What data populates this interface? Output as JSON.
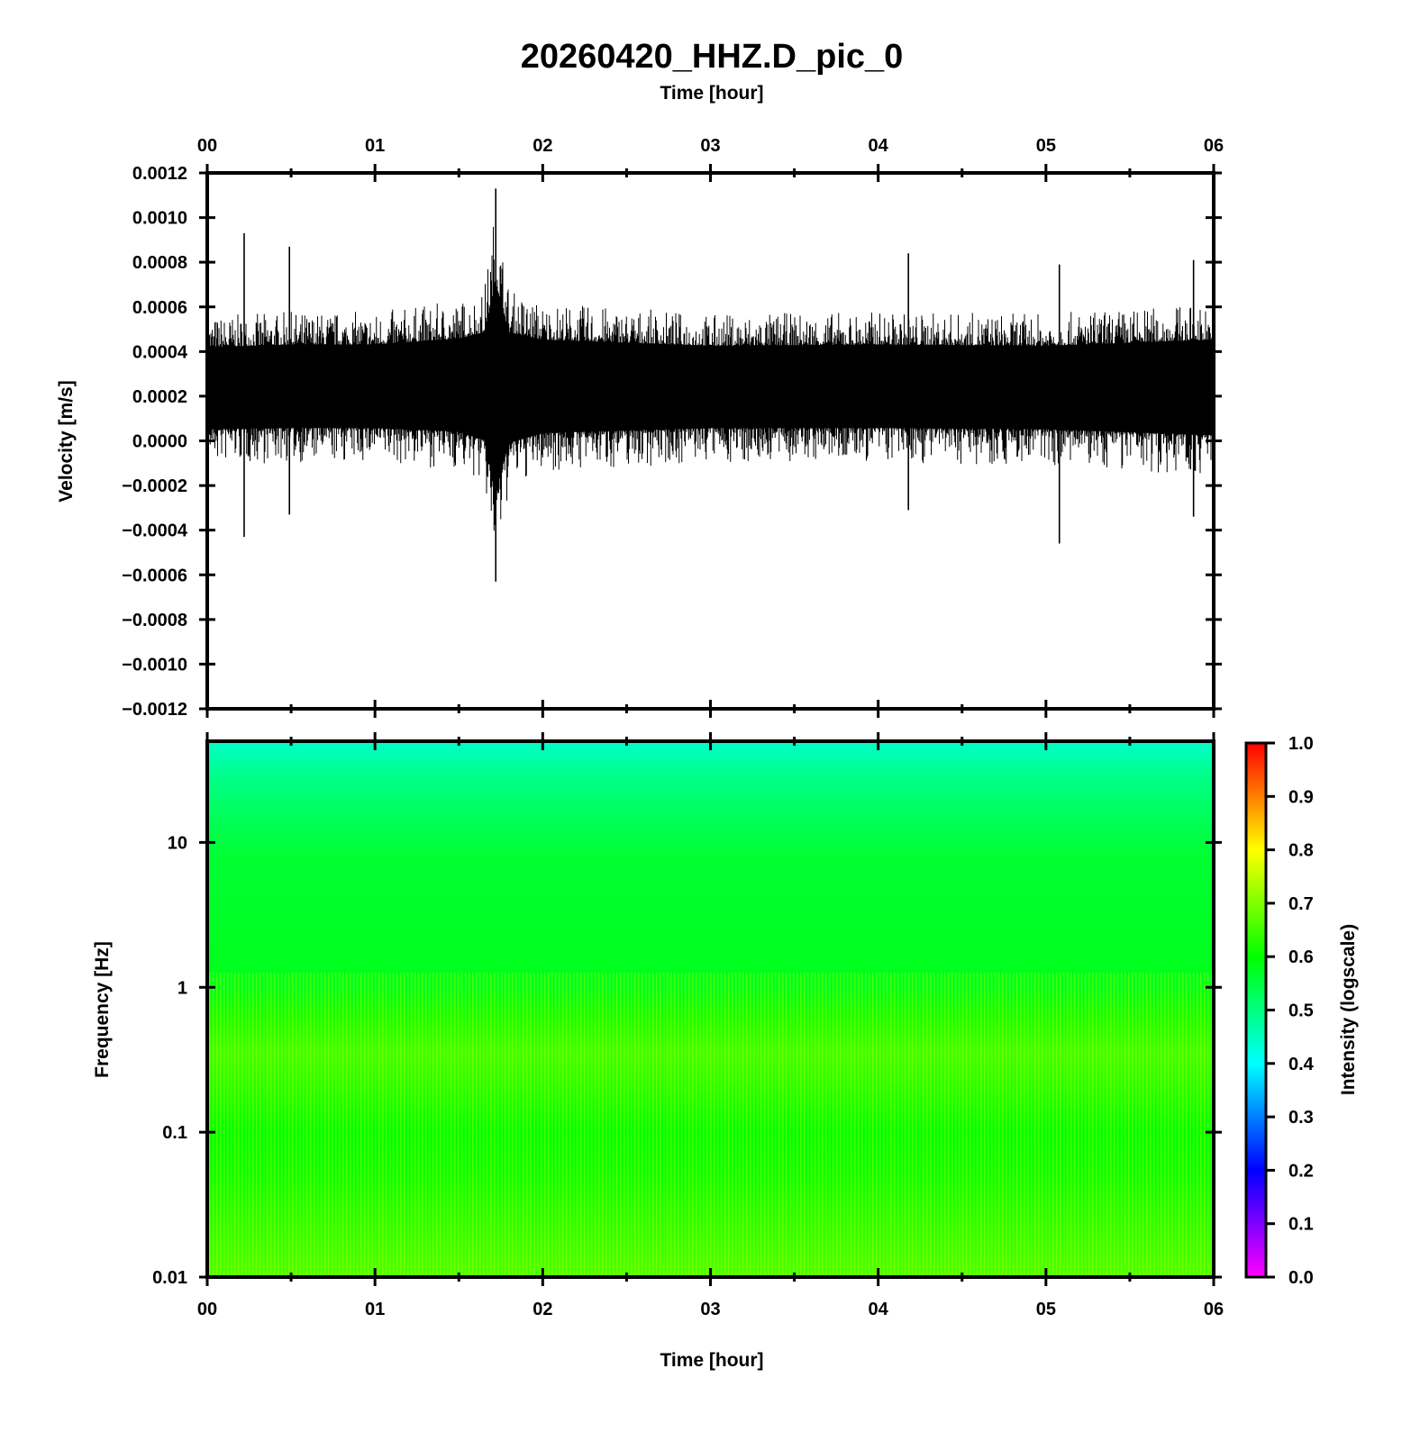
{
  "chart_data": [
    {
      "type": "line",
      "title": "20260420_HHZ.D_pic_0",
      "top_xlabel": "Time [hour]",
      "ylabel": "Velocity [m/s]",
      "xlim": [
        0,
        6
      ],
      "ylim": [
        -0.0012,
        0.0012
      ],
      "x_ticks": [
        "00",
        "01",
        "02",
        "03",
        "04",
        "05",
        "06"
      ],
      "y_ticks": [
        "0.0012",
        "0.0010",
        "0.0008",
        "0.0006",
        "0.0004",
        "0.0002",
        "0.0000",
        "−0.0002",
        "−0.0004",
        "−0.0006",
        "−0.0008",
        "−0.0010",
        "−0.0012"
      ],
      "y_tick_values": [
        0.0012,
        0.001,
        0.0008,
        0.0006,
        0.0004,
        0.0002,
        0,
        -0.0002,
        -0.0004,
        -0.0006,
        -0.0008,
        -0.001,
        -0.0012
      ],
      "series": [
        {
          "color": "#000000",
          "baseline": 0.00025,
          "envelope_upper": [
            [
              0,
              0.00056
            ],
            [
              0.5,
              0.00058
            ],
            [
              1.0,
              0.00058
            ],
            [
              1.5,
              0.00063
            ],
            [
              1.65,
              0.00068
            ],
            [
              1.72,
              0.00108
            ],
            [
              1.8,
              0.00068
            ],
            [
              2.0,
              0.00062
            ],
            [
              3.0,
              0.00057
            ],
            [
              4.0,
              0.00058
            ],
            [
              5.0,
              0.00057
            ],
            [
              6.0,
              0.00062
            ]
          ],
          "envelope_lower": [
            [
              0,
              -0.00011
            ],
            [
              0.5,
              -0.0001
            ],
            [
              1.0,
              -0.0001
            ],
            [
              1.5,
              -0.00013
            ],
            [
              1.65,
              -0.0002
            ],
            [
              1.72,
              -0.00062
            ],
            [
              1.8,
              -0.00022
            ],
            [
              2.0,
              -0.00014
            ],
            [
              3.0,
              -0.0001
            ],
            [
              4.0,
              -0.0001
            ],
            [
              5.0,
              -0.00011
            ],
            [
              6.0,
              -0.00016
            ]
          ],
          "spikes": [
            [
              0.22,
              0.00093,
              -0.00043
            ],
            [
              0.49,
              0.00087,
              -0.00033
            ],
            [
              1.72,
              0.00113,
              -0.00063
            ],
            [
              4.18,
              0.00084,
              -0.00031
            ],
            [
              5.08,
              0.00079,
              -0.00046
            ],
            [
              5.88,
              0.00081,
              -0.00034
            ]
          ]
        }
      ]
    },
    {
      "type": "heatmap",
      "xlabel": "Time [hour]",
      "ylabel": "Frequency [Hz]",
      "xlim": [
        0,
        6
      ],
      "ylim": [
        0.01,
        50
      ],
      "yscale": "log",
      "x_ticks": [
        "00",
        "01",
        "02",
        "03",
        "04",
        "05",
        "06"
      ],
      "y_ticks": [
        "10",
        "1",
        "0.1",
        "0.01"
      ],
      "y_tick_values": [
        10,
        1,
        0.1,
        0.01
      ],
      "intensity_profile": [
        [
          50,
          0.44
        ],
        [
          30,
          0.49
        ],
        [
          15,
          0.53
        ],
        [
          8,
          0.56
        ],
        [
          3,
          0.57
        ],
        [
          1,
          0.58
        ],
        [
          0.6,
          0.62
        ],
        [
          0.35,
          0.65
        ],
        [
          0.2,
          0.63
        ],
        [
          0.1,
          0.6
        ],
        [
          0.05,
          0.61
        ],
        [
          0.02,
          0.64
        ],
        [
          0.01,
          0.66
        ]
      ],
      "colorbar": {
        "label": "Intensity (logscale)",
        "range": [
          0,
          1
        ],
        "ticks": [
          "1.0",
          "0.9",
          "0.8",
          "0.7",
          "0.6",
          "0.5",
          "0.4",
          "0.3",
          "0.2",
          "0.1",
          "0.0"
        ],
        "tick_values": [
          1,
          0.9,
          0.8,
          0.7,
          0.6,
          0.5,
          0.4,
          0.3,
          0.2,
          0.1,
          0
        ],
        "colors": [
          "#ff00ff",
          "#0000ff",
          "#00ffff",
          "#00ff00",
          "#ffff00",
          "#ff0000"
        ]
      }
    }
  ]
}
